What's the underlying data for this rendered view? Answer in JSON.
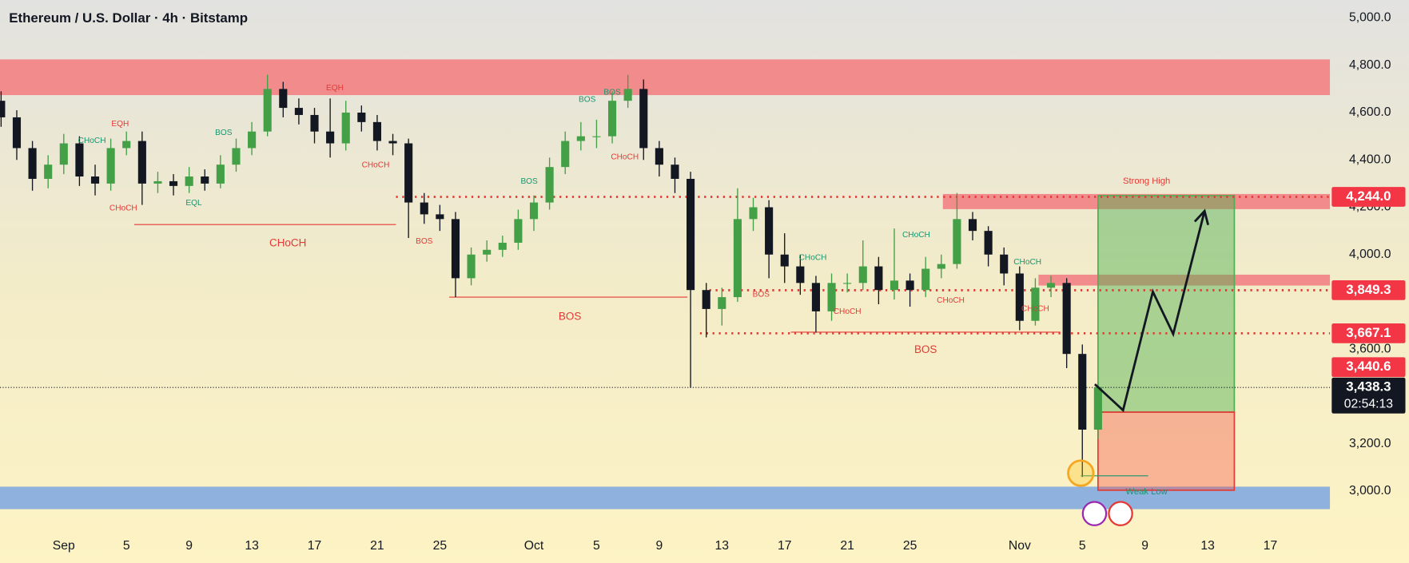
{
  "chart_data": {
    "type": "candlestick",
    "title": "Ethereum / U.S. Dollar · 4h · Bitstamp",
    "xlim": [
      -4.07,
      80.8
    ],
    "ylim": [
      2836.8,
      5075.9
    ],
    "xticks": [
      {
        "value": 0,
        "label": "Sep"
      },
      {
        "value": 4,
        "label": "5"
      },
      {
        "value": 8,
        "label": "9"
      },
      {
        "value": 12,
        "label": "13"
      },
      {
        "value": 16,
        "label": "17"
      },
      {
        "value": 20,
        "label": "21"
      },
      {
        "value": 24,
        "label": "25"
      },
      {
        "value": 30,
        "label": "Oct"
      },
      {
        "value": 34,
        "label": "5"
      },
      {
        "value": 38,
        "label": "9"
      },
      {
        "value": 42,
        "label": "13"
      },
      {
        "value": 46,
        "label": "17"
      },
      {
        "value": 50,
        "label": "21"
      },
      {
        "value": 54,
        "label": "25"
      },
      {
        "value": 61,
        "label": "Nov"
      },
      {
        "value": 65,
        "label": "5"
      },
      {
        "value": 69,
        "label": "9"
      },
      {
        "value": 73,
        "label": "13"
      },
      {
        "value": 77,
        "label": "17"
      }
    ],
    "yticks": [
      {
        "value": 5000,
        "label": "5,000.0"
      },
      {
        "value": 4800,
        "label": "4,800.0"
      },
      {
        "value": 4600,
        "label": "4,600.0"
      },
      {
        "value": 4400,
        "label": "4,400.0"
      },
      {
        "value": 4200,
        "label": "4,200.0"
      },
      {
        "value": 4000,
        "label": "4,000.0"
      },
      {
        "value": 3600,
        "label": "3,600.0"
      },
      {
        "value": 3200,
        "label": "3,200.0"
      },
      {
        "value": 3000,
        "label": "3,000.0"
      }
    ],
    "up_color": "#43a047",
    "down_color": "#131722",
    "x": [
      -4,
      -3,
      -2,
      -1,
      0,
      1,
      2,
      3,
      4,
      5,
      6,
      7,
      8,
      9,
      10,
      11,
      12,
      13,
      14,
      15,
      16,
      17,
      18,
      19,
      20,
      21,
      22,
      23,
      24,
      25,
      26,
      27,
      28,
      29,
      30,
      31,
      32,
      33,
      34,
      35,
      36,
      37,
      38,
      39,
      40,
      41,
      42,
      43,
      44,
      45,
      46,
      47,
      48,
      49,
      50,
      51,
      52,
      53,
      54,
      55,
      56,
      57,
      58,
      59,
      60,
      61,
      62,
      63,
      64,
      65,
      66
    ],
    "open": [
      4650,
      4580,
      4450,
      4320,
      4380,
      4470,
      4330,
      4300,
      4450,
      4480,
      4300,
      4310,
      4290,
      4330,
      4300,
      4380,
      4450,
      4520,
      4700,
      4620,
      4590,
      4520,
      4470,
      4600,
      4560,
      4480,
      4470,
      4220,
      4170,
      4150,
      3900,
      4000,
      4020,
      4050,
      4150,
      4220,
      4370,
      4480,
      4500,
      4500,
      4650,
      4700,
      4450,
      4380,
      4320,
      3850,
      3770,
      3820,
      4150,
      4200,
      4000,
      3950,
      3880,
      3760,
      3880,
      3880,
      3950,
      3850,
      3890,
      3850,
      3940,
      3960,
      4150,
      4100,
      4000,
      3920,
      3720,
      3860,
      3880,
      3580,
      3260
    ],
    "high": [
      4690,
      4610,
      4480,
      4420,
      4510,
      4500,
      4380,
      4490,
      4520,
      4520,
      4350,
      4340,
      4370,
      4360,
      4420,
      4490,
      4560,
      4760,
      4730,
      4660,
      4620,
      4660,
      4650,
      4630,
      4590,
      4510,
      4490,
      4260,
      4210,
      4180,
      4030,
      4060,
      4080,
      4190,
      4250,
      4410,
      4520,
      4560,
      4570,
      4690,
      4760,
      4740,
      4480,
      4410,
      4350,
      3880,
      3860,
      4280,
      4240,
      4230,
      4090,
      4000,
      3910,
      3920,
      3920,
      4060,
      3990,
      4110,
      3920,
      3990,
      4000,
      4260,
      4180,
      4120,
      4030,
      3950,
      3900,
      3910,
      3900,
      3620,
      3460
    ],
    "low": [
      4540,
      4400,
      4270,
      4280,
      4340,
      4290,
      4250,
      4270,
      4420,
      4210,
      4260,
      4250,
      4260,
      4270,
      4280,
      4350,
      4420,
      4500,
      4580,
      4550,
      4470,
      4410,
      4440,
      4520,
      4440,
      4420,
      4070,
      4130,
      4100,
      3820,
      3870,
      3970,
      3990,
      4020,
      4100,
      4190,
      4340,
      4440,
      4450,
      4470,
      4620,
      4400,
      4330,
      4260,
      3437,
      3650,
      3700,
      3800,
      4100,
      3900,
      3880,
      3830,
      3670,
      3720,
      3840,
      3850,
      3790,
      3810,
      3780,
      3820,
      3900,
      3940,
      4060,
      3950,
      3870,
      3680,
      3700,
      3820,
      3520,
      3060,
      3220
    ],
    "close": [
      4580,
      4450,
      4320,
      4380,
      4470,
      4330,
      4300,
      4450,
      4480,
      4300,
      4310,
      4290,
      4330,
      4300,
      4380,
      4450,
      4520,
      4700,
      4620,
      4590,
      4520,
      4470,
      4600,
      4560,
      4480,
      4470,
      4220,
      4170,
      4150,
      3900,
      4000,
      4020,
      4050,
      4150,
      4220,
      4370,
      4480,
      4500,
      4500,
      4650,
      4700,
      4450,
      4380,
      4320,
      3850,
      3770,
      3820,
      4150,
      4200,
      4000,
      3950,
      3880,
      3760,
      3880,
      3880,
      3950,
      3850,
      3890,
      3850,
      3940,
      3960,
      4150,
      4100,
      4000,
      3920,
      3720,
      3860,
      3880,
      3580,
      3260,
      3440
    ],
    "zones": [
      {
        "top": 4825,
        "bottom": 4674,
        "color": "#f28b8b"
      },
      {
        "top": 4256,
        "bottom": 4192,
        "x0": 56.1,
        "color": "#f28b8b"
      },
      {
        "top": 3915,
        "bottom": 3869,
        "x0": 62.2,
        "color": "#f28b8b"
      },
      {
        "top": 3019,
        "bottom": 2924,
        "color": "#8eb1de"
      }
    ],
    "dotted_levels": [
      {
        "value": 4244.0,
        "x0": 21.2,
        "color": "#e53935"
      },
      {
        "value": 3849.3,
        "x0": 41.2,
        "color": "#e53935"
      },
      {
        "value": 3667.1,
        "x0": 40.6,
        "color": "#e53935"
      },
      {
        "value": 3438.3,
        "color": "#131722"
      }
    ],
    "structure_lines": [
      {
        "value": 4127,
        "x0": 4.5,
        "x1": 21.2
      },
      {
        "value": 3820,
        "x0": 24.6,
        "x1": 39.8
      },
      {
        "value": 3672,
        "x0": 46.4,
        "x1": 63.6
      }
    ],
    "position": {
      "target": 4249,
      "entry": 3334,
      "stop": 3004,
      "x0": 66.0,
      "x1": 74.7
    },
    "projection": {
      "x": [
        65.8,
        67.6,
        69.5,
        70.8,
        72.8
      ],
      "values": [
        3452,
        3342,
        3843,
        3664,
        4184
      ]
    },
    "weak_low": {
      "x": 64.9,
      "value": 3076,
      "line_x1": 69.2,
      "line_value": 3065
    },
    "labels": [
      {
        "text": "CHoCH",
        "x": 14.3,
        "y": 4047,
        "color": "#e53935"
      },
      {
        "text": "BOS",
        "x": 32.3,
        "y": 3736,
        "color": "#e53935"
      },
      {
        "text": "BOS",
        "x": 55.0,
        "y": 3596,
        "color": "#e53935"
      },
      {
        "text": "Strong High",
        "x": 69.1,
        "y": 4309,
        "color": "#e53935"
      },
      {
        "text": "Weak Low",
        "x": 69.1,
        "y": 2996,
        "color": "#17966f"
      }
    ],
    "small_labels": [
      {
        "text": "EQH",
        "x": 3.6,
        "y": 4552,
        "color": "#e53935"
      },
      {
        "text": "CHoCH",
        "x": 1.8,
        "y": 4480,
        "color": "#17966f"
      },
      {
        "text": "CHoCH",
        "x": 3.8,
        "y": 4196,
        "color": "#e53935"
      },
      {
        "text": "BOS",
        "x": 10.2,
        "y": 4514,
        "color": "#17966f"
      },
      {
        "text": "EQL",
        "x": 8.3,
        "y": 4218,
        "color": "#17966f"
      },
      {
        "text": "EQH",
        "x": 17.3,
        "y": 4704,
        "color": "#e53935"
      },
      {
        "text": "CHoCH",
        "x": 19.9,
        "y": 4378,
        "color": "#e53935"
      },
      {
        "text": "BOS",
        "x": 23.0,
        "y": 4055,
        "color": "#e53935"
      },
      {
        "text": "BOS",
        "x": 29.7,
        "y": 4309,
        "color": "#17966f"
      },
      {
        "text": "BOS",
        "x": 33.4,
        "y": 4655,
        "color": "#17966f"
      },
      {
        "text": "BOS",
        "x": 35.0,
        "y": 4685,
        "color": "#17966f"
      },
      {
        "text": "CHoCH",
        "x": 35.8,
        "y": 4412,
        "color": "#e53935"
      },
      {
        "text": "BOS",
        "x": 44.5,
        "y": 3831,
        "color": "#e53935"
      },
      {
        "text": "CHoCH",
        "x": 47.8,
        "y": 3987,
        "color": "#17966f"
      },
      {
        "text": "CHoCH",
        "x": 50.0,
        "y": 3759,
        "color": "#e53935"
      },
      {
        "text": "CHoCH",
        "x": 54.4,
        "y": 4082,
        "color": "#17966f"
      },
      {
        "text": "CHoCH",
        "x": 56.6,
        "y": 3805,
        "color": "#e53935"
      },
      {
        "text": "CHoCH",
        "x": 61.5,
        "y": 3968,
        "color": "#17966f"
      },
      {
        "text": "CHoCH",
        "x": 62.0,
        "y": 3770,
        "color": "#e53935"
      }
    ],
    "price_tags": [
      {
        "value": 3438.3,
        "label": "3,438.3",
        "countdown": "02:54:13",
        "color": "#131722"
      },
      {
        "value": 4244.0,
        "label": "4,244.0",
        "color": "#f23645"
      },
      {
        "value": 3849.3,
        "label": "3,849.3",
        "color": "#f23645"
      },
      {
        "value": 3667.1,
        "label": "3,667.1",
        "color": "#f23645"
      },
      {
        "value": 3440.6,
        "label": "3,440.6",
        "color": "#f23645"
      }
    ]
  }
}
